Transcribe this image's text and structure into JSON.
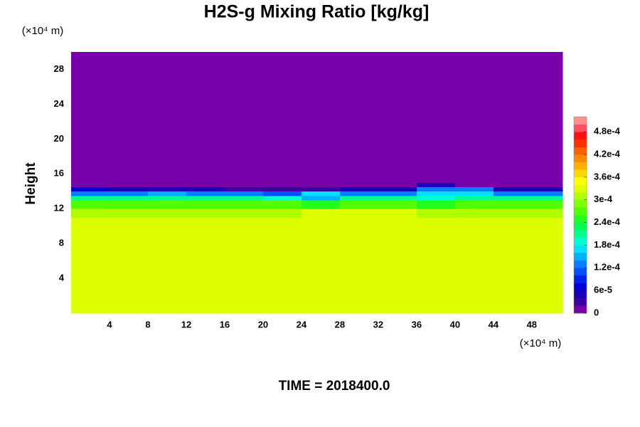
{
  "chart_data": {
    "type": "heatmap",
    "title": "H2S-g Mixing Ratio [kg/kg]",
    "ylabel": "Height",
    "x_unit_label": "(×10⁴ m)",
    "y_unit_label": "(×10⁴ m)",
    "footer": "TIME = 2018400.0",
    "xlim": [
      0,
      51.2
    ],
    "ylim": [
      0,
      30
    ],
    "xticks": [
      4,
      8,
      12,
      16,
      20,
      24,
      28,
      32,
      36,
      40,
      44,
      48
    ],
    "yticks": [
      4,
      8,
      12,
      16,
      20,
      24,
      28
    ],
    "x_edges": [
      0,
      4,
      8,
      12,
      16,
      20,
      24,
      28,
      32,
      36,
      40,
      44,
      48,
      51.2
    ],
    "y_edges": [
      0,
      11,
      12,
      13,
      13.5,
      14,
      14.5,
      15,
      30
    ],
    "z": [
      [
        0.00033,
        0.00033,
        0.00033,
        0.00033,
        0.00033,
        0.00033,
        0.00033,
        0.00033,
        0.00033,
        0.00033,
        0.00033,
        0.00033,
        0.00033
      ],
      [
        0.00031,
        0.00031,
        0.00031,
        0.00031,
        0.00031,
        0.00031,
        0.00033,
        0.00033,
        0.00033,
        0.00031,
        0.00031,
        0.00031,
        0.00031
      ],
      [
        0.00026,
        0.00026,
        0.00026,
        0.00026,
        0.00026,
        0.00026,
        0.00024,
        0.00026,
        0.00026,
        0.00024,
        0.00026,
        0.00026,
        0.00026
      ],
      [
        0.0002,
        0.0002,
        0.0002,
        0.0002,
        0.0002,
        0.00018,
        0.00014,
        0.0002,
        0.0002,
        0.00018,
        0.0002,
        0.0002,
        0.0002
      ],
      [
        0.00012,
        0.00012,
        0.00014,
        0.00012,
        0.00012,
        0.0001,
        0.00016,
        0.00012,
        0.00012,
        0.00016,
        0.00016,
        0.00012,
        0.00012
      ],
      [
        6e-05,
        4e-05,
        4e-05,
        4e-05,
        2e-05,
        2e-05,
        2e-05,
        4e-05,
        4e-05,
        0.00012,
        0.00012,
        4e-05,
        4e-05
      ],
      [
        0,
        0,
        0,
        0,
        0,
        0,
        0,
        0,
        0,
        4e-05,
        0,
        0,
        0
      ],
      [
        0,
        0,
        0,
        0,
        0,
        0,
        0,
        0,
        0,
        0,
        0,
        0,
        0
      ]
    ],
    "clim": [
      0,
      0.00052
    ],
    "colors": [
      "#7800a8",
      "#3a00a0",
      "#1a00b8",
      "#0000d8",
      "#0020f0",
      "#0050ff",
      "#0080ff",
      "#00b0ff",
      "#00e0ff",
      "#00ffd0",
      "#00ff90",
      "#00ff50",
      "#20ff20",
      "#50ff00",
      "#80ff00",
      "#b0ff00",
      "#ddff00",
      "#ffff00",
      "#ffd800",
      "#ffb000",
      "#ff8800",
      "#ff6000",
      "#ff3000",
      "#ff1010",
      "#ff5060",
      "#ff9090"
    ],
    "colorbar_ticks": [
      0,
      {
        "value": 6e-05,
        "label": "6e-5"
      },
      {
        "value": 0.00012,
        "label": "1.2e-4"
      },
      {
        "value": 0.00018,
        "label": "1.8e-4"
      },
      {
        "value": 0.00024,
        "label": "2.4e-4"
      },
      {
        "value": 0.0003,
        "label": "3e-4"
      },
      {
        "value": 0.00036,
        "label": "3.6e-4"
      },
      {
        "value": 0.00042,
        "label": "4.2e-4"
      },
      {
        "value": 0.00048,
        "label": "4.8e-4"
      }
    ]
  }
}
